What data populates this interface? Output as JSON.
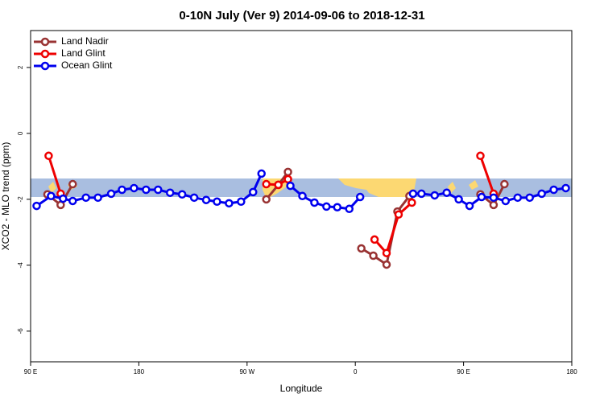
{
  "chart_data": {
    "type": "line",
    "title": "0-10N July (Ver 9)   2014-09-06 to 2018-12-31",
    "x_label": "Longitude",
    "y_label": "XCO2 - MLO trend (ppm)",
    "xlim": [
      90,
      540
    ],
    "ylim": [
      -6.93,
      3.12
    ],
    "xticks": [
      {
        "value": 90,
        "label": "90 E"
      },
      180,
      {
        "value": 270,
        "label": "90 W"
      },
      {
        "value": 360,
        "label": "0"
      },
      {
        "value": 450,
        "label": "90 E"
      },
      {
        "value": 540,
        "label": "180"
      }
    ],
    "yticks": [
      -6,
      -4,
      -2,
      0,
      2
    ],
    "legend": "top-left",
    "series": [
      {
        "name": "Land Nadir",
        "color": "#993333",
        "x": [
          104,
          115,
          125,
          200,
          286,
          296,
          304,
          330,
          365,
          375,
          386,
          395,
          405,
          430,
          464,
          475,
          484
        ],
        "values": [
          -1.85,
          -2.17,
          -1.54,
          null,
          -2.0,
          -1.56,
          -1.17,
          null,
          -3.49,
          -3.71,
          -3.98,
          -2.37,
          -1.9,
          null,
          -1.85,
          -2.17,
          -1.54
        ]
      },
      {
        "name": "Land Glint",
        "color": "#ee0000",
        "x": [
          105,
          115,
          200,
          286,
          296,
          304,
          340,
          376,
          386,
          396,
          407,
          430,
          464,
          475
        ],
        "values": [
          -0.68,
          -1.83,
          null,
          -1.54,
          -1.56,
          -1.39,
          null,
          -3.22,
          -3.63,
          -2.46,
          -2.1,
          null,
          -0.68,
          -1.83
        ]
      },
      {
        "name": "Ocean Glint",
        "color": "#0000ee",
        "x": [
          95,
          107,
          117,
          125,
          136,
          146,
          157,
          166,
          176,
          186,
          196,
          206,
          216,
          226,
          236,
          245,
          255,
          265,
          275,
          282,
          294,
          306,
          316,
          326,
          336,
          345,
          355,
          364,
          386,
          408,
          415,
          426,
          436,
          446,
          455,
          465,
          475,
          485,
          495,
          505,
          515,
          525,
          535
        ],
        "values": [
          -2.2,
          -1.9,
          -1.98,
          -2.05,
          -1.95,
          -1.95,
          -1.83,
          -1.71,
          -1.66,
          -1.71,
          -1.71,
          -1.8,
          -1.85,
          -1.95,
          -2.02,
          -2.07,
          -2.12,
          -2.07,
          -1.78,
          -1.22,
          null,
          -1.59,
          -1.9,
          -2.1,
          -2.22,
          -2.24,
          -2.29,
          -1.93,
          null,
          -1.83,
          -1.83,
          -1.88,
          -1.8,
          -2.0,
          -2.2,
          -1.93,
          -1.95,
          -2.05,
          -1.95,
          -1.95,
          -1.83,
          -1.71,
          -1.66
        ]
      }
    ]
  }
}
